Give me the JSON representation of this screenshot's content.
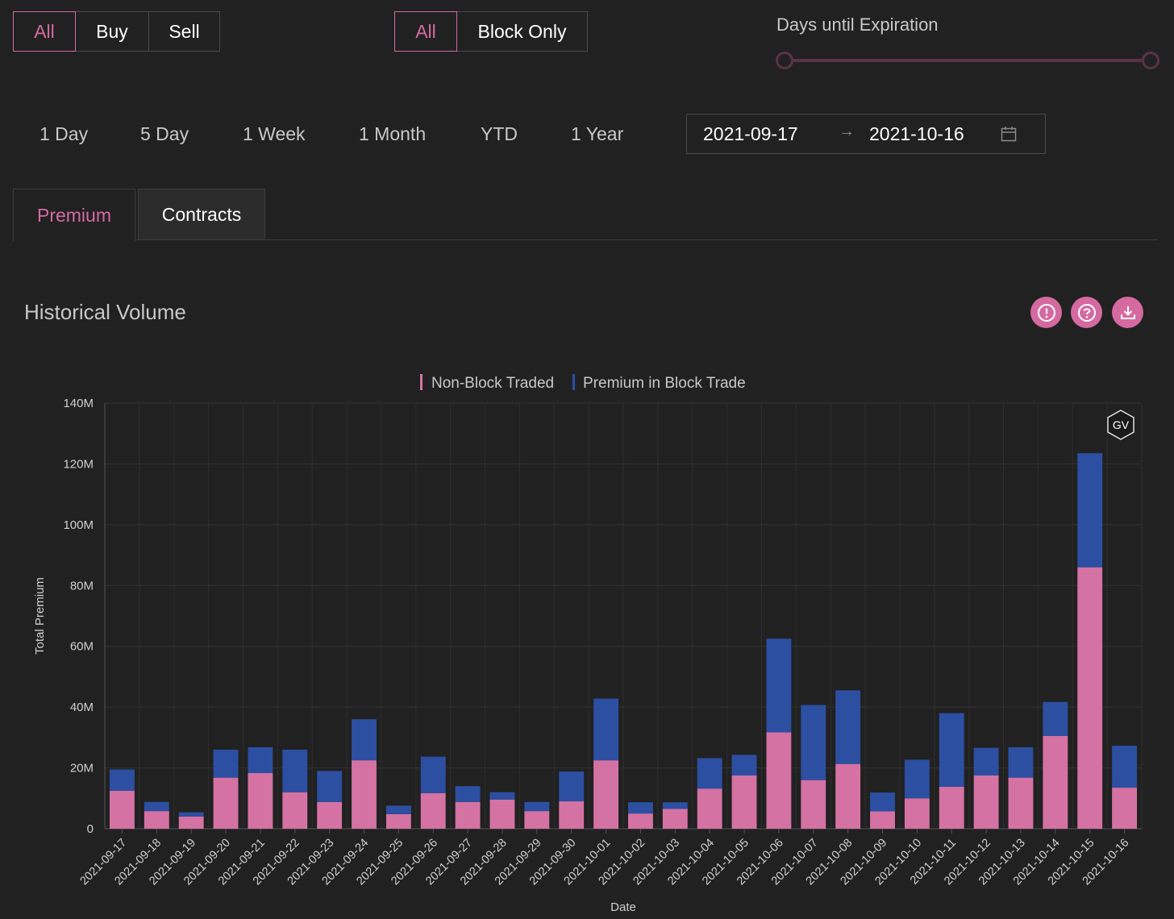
{
  "filters": {
    "side": {
      "options": [
        "All",
        "Buy",
        "Sell"
      ],
      "active": 0
    },
    "block": {
      "options": [
        "All",
        "Block Only"
      ],
      "active": 0
    },
    "expiration_label": "Days until Expiration"
  },
  "ranges": [
    "1 Day",
    "5 Day",
    "1 Week",
    "1 Month",
    "YTD",
    "1 Year"
  ],
  "date_range": {
    "start": "2021-09-17",
    "end": "2021-10-16",
    "separator": "→"
  },
  "tabs": [
    "Premium",
    "Contracts"
  ],
  "active_tab": 0,
  "section_title": "Historical Volume",
  "icons": [
    "alert-icon",
    "help-icon",
    "download-icon"
  ],
  "colors": {
    "accent": "#d46aa0",
    "non_block": "#d472a3",
    "block": "#2c4fa2"
  },
  "watermark": "GV",
  "chart_data": {
    "type": "bar",
    "stacked": true,
    "xlabel": "Date",
    "ylabel": "Total Premium",
    "ylim": [
      0,
      140000000
    ],
    "yticks": [
      "0",
      "20M",
      "40M",
      "60M",
      "80M",
      "100M",
      "120M",
      "140M"
    ],
    "legend_position": "top-center",
    "grid": true,
    "categories": [
      "2021-09-17",
      "2021-09-18",
      "2021-09-19",
      "2021-09-20",
      "2021-09-21",
      "2021-09-22",
      "2021-09-23",
      "2021-09-24",
      "2021-09-25",
      "2021-09-26",
      "2021-09-27",
      "2021-09-28",
      "2021-09-29",
      "2021-09-30",
      "2021-10-01",
      "2021-10-02",
      "2021-10-03",
      "2021-10-04",
      "2021-10-05",
      "2021-10-06",
      "2021-10-07",
      "2021-10-08",
      "2021-10-09",
      "2021-10-10",
      "2021-10-11",
      "2021-10-12",
      "2021-10-13",
      "2021-10-14",
      "2021-10-15",
      "2021-10-16"
    ],
    "series": [
      {
        "name": "Non-Block Traded",
        "color": "#d472a3",
        "values": [
          12.5,
          5.8,
          4.0,
          16.8,
          18.3,
          12.0,
          8.8,
          22.5,
          4.8,
          11.7,
          8.8,
          9.6,
          5.8,
          9.0,
          22.5,
          5.0,
          6.5,
          13.2,
          17.5,
          31.7,
          16.0,
          21.3,
          5.7,
          10.0,
          13.8,
          17.5,
          16.8,
          30.5,
          86.0,
          13.5
        ]
      },
      {
        "name": "Premium in Block Trade",
        "color": "#2c4fa2",
        "values": [
          7.0,
          3.0,
          1.4,
          9.2,
          8.5,
          14.0,
          10.2,
          13.5,
          2.8,
          12.0,
          5.2,
          2.4,
          3.0,
          9.8,
          20.3,
          3.7,
          2.2,
          10.0,
          6.8,
          30.8,
          24.7,
          24.2,
          6.2,
          12.7,
          24.2,
          9.1,
          10.0,
          11.2,
          37.5,
          13.8
        ]
      }
    ],
    "unit_multiplier": 1000000
  }
}
